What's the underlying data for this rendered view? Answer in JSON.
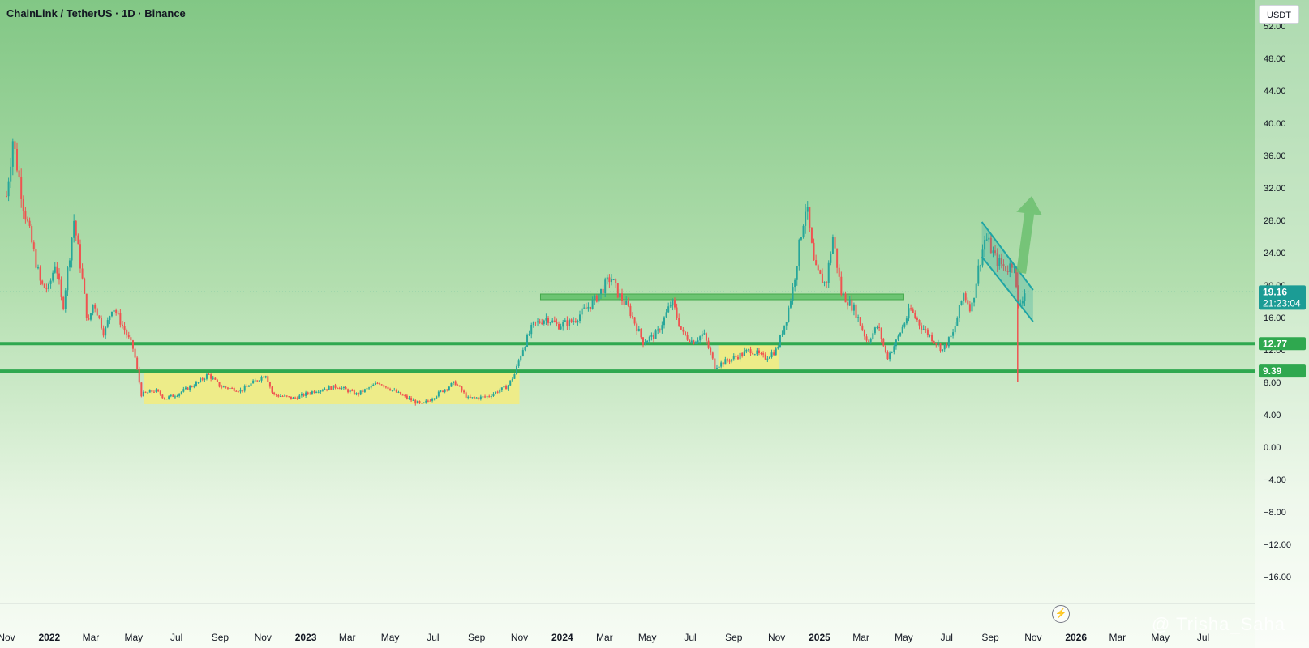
{
  "header": {
    "symbol_title": "ChainLink / TetherUS · 1D · Binance",
    "currency_button": "USDT"
  },
  "watermark": {
    "text": "@ Trisha_Saha"
  },
  "colors": {
    "support_line": "#2fa84f",
    "yellow_zone": "#f3ec7e",
    "resistance_zone": "#5fbf67",
    "channel": "#1fa5a5",
    "arrow": "#6cc070",
    "price_badge": "#1b9c95",
    "candle_up": "#26a69a",
    "candle_down": "#ef5350"
  },
  "chart_data": {
    "type": "candlestick",
    "title": "ChainLink / TetherUS · 1D · Binance",
    "y_axis": {
      "ticks": [
        52,
        48,
        44,
        40,
        36,
        32,
        28,
        24,
        20,
        16,
        12,
        8,
        4,
        0,
        -4,
        -8,
        -12,
        -16
      ],
      "tick_labels": [
        "52.00",
        "48.00",
        "44.00",
        "40.00",
        "36.00",
        "32.00",
        "28.00",
        "24.00",
        "20.00",
        "16.00",
        "12.00",
        "8.00",
        "4.00",
        "0.00",
        "−4.00",
        "−8.00",
        "−12.00",
        "−16.00"
      ],
      "range": [
        -20,
        53
      ]
    },
    "x_axis": {
      "range": [
        "2021-11-01",
        "2026-07-20"
      ],
      "ticks": [
        {
          "date": "2021-11-01",
          "label": "Nov",
          "bold": false
        },
        {
          "date": "2022-01-01",
          "label": "2022",
          "bold": true
        },
        {
          "date": "2022-03-01",
          "label": "Mar",
          "bold": false
        },
        {
          "date": "2022-05-01",
          "label": "May",
          "bold": false
        },
        {
          "date": "2022-07-01",
          "label": "Jul",
          "bold": false
        },
        {
          "date": "2022-09-01",
          "label": "Sep",
          "bold": false
        },
        {
          "date": "2022-11-01",
          "label": "Nov",
          "bold": false
        },
        {
          "date": "2023-01-01",
          "label": "2023",
          "bold": true
        },
        {
          "date": "2023-03-01",
          "label": "Mar",
          "bold": false
        },
        {
          "date": "2023-05-01",
          "label": "May",
          "bold": false
        },
        {
          "date": "2023-07-01",
          "label": "Jul",
          "bold": false
        },
        {
          "date": "2023-09-01",
          "label": "Sep",
          "bold": false
        },
        {
          "date": "2023-11-01",
          "label": "Nov",
          "bold": false
        },
        {
          "date": "2024-01-01",
          "label": "2024",
          "bold": true
        },
        {
          "date": "2024-03-01",
          "label": "Mar",
          "bold": false
        },
        {
          "date": "2024-05-01",
          "label": "May",
          "bold": false
        },
        {
          "date": "2024-07-01",
          "label": "Jul",
          "bold": false
        },
        {
          "date": "2024-09-01",
          "label": "Sep",
          "bold": false
        },
        {
          "date": "2024-11-01",
          "label": "Nov",
          "bold": false
        },
        {
          "date": "2025-01-01",
          "label": "2025",
          "bold": true
        },
        {
          "date": "2025-03-01",
          "label": "Mar",
          "bold": false
        },
        {
          "date": "2025-05-01",
          "label": "May",
          "bold": false
        },
        {
          "date": "2025-07-01",
          "label": "Jul",
          "bold": false
        },
        {
          "date": "2025-09-01",
          "label": "Sep",
          "bold": false
        },
        {
          "date": "2025-11-01",
          "label": "Nov",
          "bold": false
        },
        {
          "date": "2026-01-01",
          "label": "2026",
          "bold": true
        },
        {
          "date": "2026-03-01",
          "label": "Mar",
          "bold": false
        },
        {
          "date": "2026-05-01",
          "label": "May",
          "bold": false
        },
        {
          "date": "2026-07-01",
          "label": "Jul",
          "bold": false
        }
      ]
    },
    "price_path": [
      [
        "2021-11-01",
        31
      ],
      [
        "2021-11-10",
        38
      ],
      [
        "2021-11-25",
        30
      ],
      [
        "2021-12-05",
        26
      ],
      [
        "2021-12-20",
        20
      ],
      [
        "2021-12-31",
        19.5
      ],
      [
        "2022-01-10",
        23
      ],
      [
        "2022-01-20",
        17
      ],
      [
        "2022-02-05",
        28
      ],
      [
        "2022-02-15",
        22
      ],
      [
        "2022-02-25",
        15
      ],
      [
        "2022-03-05",
        18
      ],
      [
        "2022-03-20",
        14
      ],
      [
        "2022-04-01",
        17.5
      ],
      [
        "2022-04-15",
        15
      ],
      [
        "2022-05-01",
        12
      ],
      [
        "2022-05-12",
        6.5
      ],
      [
        "2022-06-01",
        7
      ],
      [
        "2022-06-15",
        6
      ],
      [
        "2022-07-01",
        6.5
      ],
      [
        "2022-08-01",
        8
      ],
      [
        "2022-08-15",
        9
      ],
      [
        "2022-09-01",
        7.5
      ],
      [
        "2022-10-01",
        7
      ],
      [
        "2022-11-05",
        9
      ],
      [
        "2022-11-15",
        6.5
      ],
      [
        "2022-12-15",
        6
      ],
      [
        "2023-01-15",
        7
      ],
      [
        "2023-02-15",
        7.5
      ],
      [
        "2023-03-15",
        6.5
      ],
      [
        "2023-04-15",
        8
      ],
      [
        "2023-05-15",
        6.5
      ],
      [
        "2023-06-15",
        5.2
      ],
      [
        "2023-07-15",
        7
      ],
      [
        "2023-08-01",
        8
      ],
      [
        "2023-08-20",
        6
      ],
      [
        "2023-09-15",
        6.2
      ],
      [
        "2023-10-15",
        7.5
      ],
      [
        "2023-10-25",
        9
      ],
      [
        "2023-11-05",
        12
      ],
      [
        "2023-11-20",
        15
      ],
      [
        "2023-12-10",
        16
      ],
      [
        "2023-12-25",
        15
      ],
      [
        "2024-01-15",
        15.5
      ],
      [
        "2024-02-15",
        18
      ],
      [
        "2024-03-10",
        21
      ],
      [
        "2024-03-20",
        19
      ],
      [
        "2024-04-05",
        17
      ],
      [
        "2024-04-25",
        13
      ],
      [
        "2024-05-15",
        14
      ],
      [
        "2024-06-05",
        18
      ],
      [
        "2024-06-20",
        14
      ],
      [
        "2024-07-05",
        13
      ],
      [
        "2024-07-20",
        14
      ],
      [
        "2024-08-05",
        10
      ],
      [
        "2024-09-01",
        11
      ],
      [
        "2024-09-25",
        12
      ],
      [
        "2024-10-15",
        11
      ],
      [
        "2024-11-01",
        12
      ],
      [
        "2024-11-15",
        16
      ],
      [
        "2024-11-25",
        20
      ],
      [
        "2024-12-05",
        26
      ],
      [
        "2024-12-13",
        30
      ],
      [
        "2024-12-25",
        22
      ],
      [
        "2025-01-10",
        20
      ],
      [
        "2025-01-20",
        26
      ],
      [
        "2025-02-01",
        19
      ],
      [
        "2025-02-20",
        17
      ],
      [
        "2025-03-10",
        13
      ],
      [
        "2025-03-25",
        15
      ],
      [
        "2025-04-07",
        11
      ],
      [
        "2025-04-20",
        13
      ],
      [
        "2025-05-10",
        17
      ],
      [
        "2025-05-25",
        15
      ],
      [
        "2025-06-15",
        13
      ],
      [
        "2025-06-25",
        12
      ],
      [
        "2025-07-10",
        14
      ],
      [
        "2025-07-25",
        19
      ],
      [
        "2025-08-05",
        17
      ],
      [
        "2025-08-15",
        22
      ],
      [
        "2025-08-25",
        26
      ],
      [
        "2025-09-10",
        23
      ],
      [
        "2025-09-25",
        22
      ],
      [
        "2025-10-05",
        23
      ],
      [
        "2025-10-10",
        17
      ],
      [
        "2025-10-20",
        19.2
      ]
    ],
    "support_lines": [
      {
        "price": 12.77,
        "label": "12.77"
      },
      {
        "price": 9.39,
        "label": "9.39"
      }
    ],
    "zones": [
      {
        "kind": "accumulation",
        "x_start": "2022-05-15",
        "x_end": "2023-11-01",
        "y_low": 5.3,
        "y_high": 9.3
      },
      {
        "kind": "accumulation",
        "x_start": "2024-08-10",
        "x_end": "2024-11-05",
        "y_low": 9.5,
        "y_high": 12.7
      },
      {
        "kind": "resistance",
        "x_start": "2023-12-01",
        "x_end": "2025-05-01",
        "y_low": 18.2,
        "y_high": 18.9
      }
    ],
    "channel": {
      "upper": [
        [
          "2025-08-20",
          27.8
        ],
        [
          "2025-11-01",
          19.4
        ]
      ],
      "lower": [
        [
          "2025-08-20",
          23.5
        ],
        [
          "2025-11-01",
          15.5
        ]
      ]
    },
    "arrow": {
      "from": [
        "2025-10-15",
        21.5
      ],
      "to": [
        "2025-10-30",
        31
      ]
    },
    "last_price": {
      "value": 19.16,
      "label": "19.16",
      "countdown": "21:23:04"
    }
  }
}
